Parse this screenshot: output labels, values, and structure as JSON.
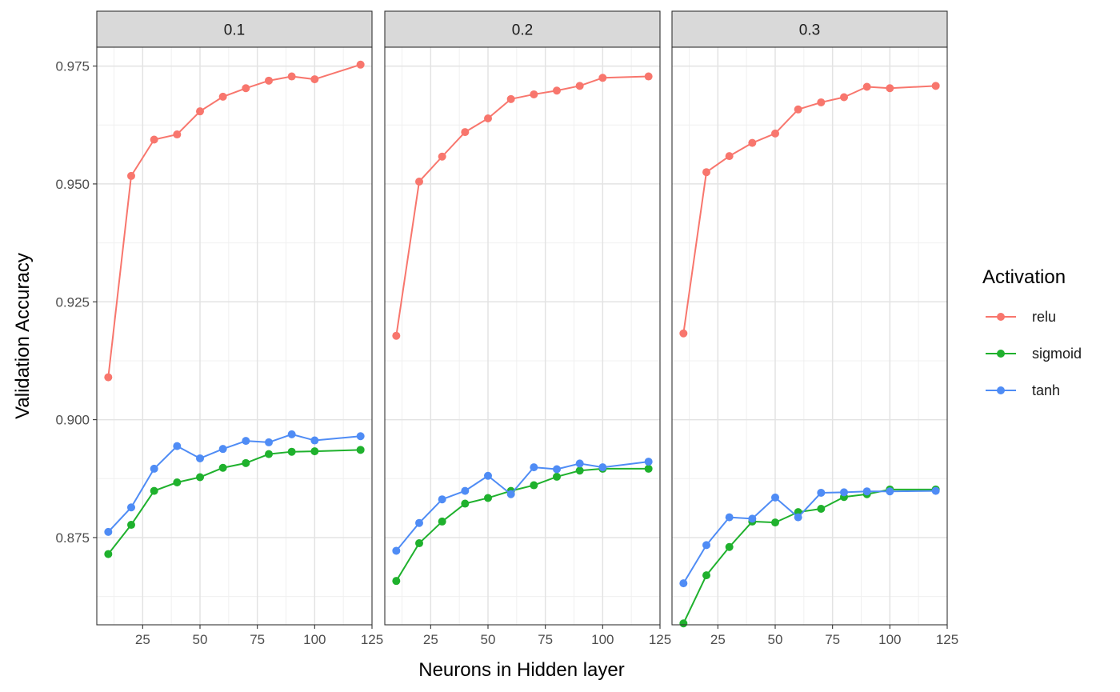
{
  "chart_data": {
    "type": "line",
    "xlabel": "Neurons in Hidden layer",
    "ylabel": "Validation Accuracy",
    "xlim": [
      5,
      125
    ],
    "ylim": [
      0.8565,
      0.979
    ],
    "x_ticks": [
      25,
      50,
      75,
      100,
      125
    ],
    "y_ticks": [
      0.875,
      0.9,
      0.925,
      0.95,
      0.975
    ],
    "x_tick_labels": [
      "25",
      "50",
      "75",
      "100",
      "125"
    ],
    "y_tick_labels": [
      "0.875",
      "0.900",
      "0.925",
      "0.950",
      "0.975"
    ],
    "grid": true,
    "legend": {
      "title": "Activation",
      "position": "right",
      "entries": [
        {
          "name": "relu",
          "color": "#F8766D"
        },
        {
          "name": "sigmoid",
          "color": "#1FB12D"
        },
        {
          "name": "tanh",
          "color": "#4F8CF5"
        }
      ]
    },
    "panels": [
      {
        "strip": "0.1",
        "series": [
          {
            "name": "relu",
            "x": [
              10,
              20,
              30,
              40,
              50,
              60,
              70,
              80,
              90,
              100,
              120
            ],
            "y": [
              0.909,
              0.9517,
              0.9594,
              0.9605,
              0.9654,
              0.9685,
              0.9703,
              0.9719,
              0.9728,
              0.9722,
              0.9753
            ]
          },
          {
            "name": "sigmoid",
            "x": [
              10,
              20,
              30,
              40,
              50,
              60,
              70,
              80,
              90,
              100,
              120
            ],
            "y": [
              0.8715,
              0.8777,
              0.8849,
              0.8867,
              0.8878,
              0.8898,
              0.8908,
              0.8927,
              0.8932,
              0.8933,
              0.8936
            ]
          },
          {
            "name": "tanh",
            "x": [
              10,
              20,
              30,
              40,
              50,
              60,
              70,
              80,
              90,
              100,
              120
            ],
            "y": [
              0.8762,
              0.8814,
              0.8896,
              0.8944,
              0.8918,
              0.8938,
              0.8955,
              0.8952,
              0.8969,
              0.8956,
              0.8965
            ]
          }
        ]
      },
      {
        "strip": "0.2",
        "series": [
          {
            "name": "relu",
            "x": [
              10,
              20,
              30,
              40,
              50,
              60,
              70,
              80,
              90,
              100,
              120
            ],
            "y": [
              0.9178,
              0.9505,
              0.9558,
              0.961,
              0.9639,
              0.968,
              0.969,
              0.9698,
              0.9708,
              0.9725,
              0.9728
            ]
          },
          {
            "name": "sigmoid",
            "x": [
              10,
              20,
              30,
              40,
              50,
              60,
              70,
              80,
              90,
              100,
              120
            ],
            "y": [
              0.8658,
              0.8738,
              0.8784,
              0.8822,
              0.8834,
              0.8849,
              0.8861,
              0.8879,
              0.8892,
              0.8896,
              0.8896
            ]
          },
          {
            "name": "tanh",
            "x": [
              10,
              20,
              30,
              40,
              50,
              60,
              70,
              80,
              90,
              100,
              120
            ],
            "y": [
              0.8722,
              0.8781,
              0.8831,
              0.8849,
              0.8881,
              0.8842,
              0.8899,
              0.8895,
              0.8907,
              0.8899,
              0.8911
            ]
          }
        ]
      },
      {
        "strip": "0.3",
        "series": [
          {
            "name": "relu",
            "x": [
              10,
              20,
              30,
              40,
              50,
              60,
              70,
              80,
              90,
              100,
              120
            ],
            "y": [
              0.9183,
              0.9525,
              0.9559,
              0.9587,
              0.9607,
              0.9658,
              0.9673,
              0.9684,
              0.9706,
              0.9703,
              0.9708
            ]
          },
          {
            "name": "sigmoid",
            "x": [
              10,
              20,
              30,
              40,
              50,
              60,
              70,
              80,
              90,
              100,
              120
            ],
            "y": [
              0.8568,
              0.867,
              0.873,
              0.8784,
              0.8782,
              0.8804,
              0.8811,
              0.8836,
              0.8842,
              0.8852,
              0.8852
            ]
          },
          {
            "name": "tanh",
            "x": [
              10,
              20,
              30,
              40,
              50,
              60,
              70,
              80,
              90,
              100,
              120
            ],
            "y": [
              0.8653,
              0.8734,
              0.8793,
              0.879,
              0.8835,
              0.8793,
              0.8845,
              0.8846,
              0.8848,
              0.8848,
              0.8849
            ]
          }
        ]
      }
    ]
  }
}
